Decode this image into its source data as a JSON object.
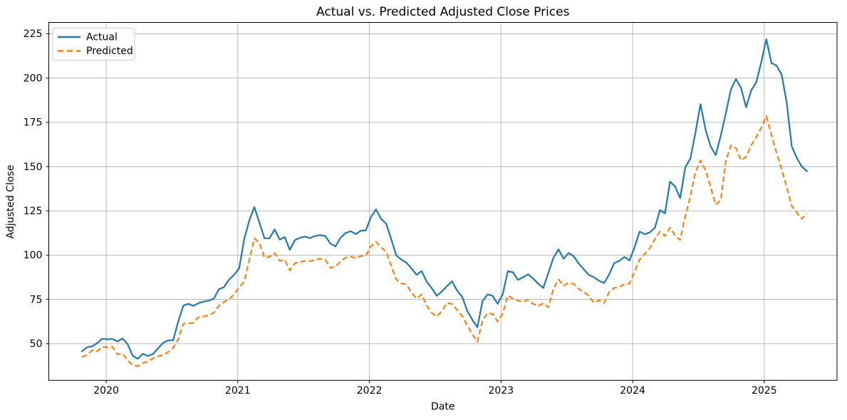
{
  "chart_data": {
    "type": "line",
    "title": "Actual vs. Predicted Adjusted Close Prices",
    "xlabel": "Date",
    "ylabel": "Adjusted Close",
    "xlim": [
      2019.564,
      2025.553
    ],
    "ylim": [
      29.3,
      231.4
    ],
    "x_ticks": [
      2020,
      2021,
      2022,
      2023,
      2024,
      2025
    ],
    "y_ticks": [
      50,
      75,
      100,
      125,
      150,
      175,
      200,
      225
    ],
    "grid": true,
    "grid_color": "#b0b0b0",
    "legend_position": "upper left",
    "x_start_decimal_year": 2019.816,
    "x_step_decimal_year": 0.03852,
    "series": [
      {
        "name": "Actual",
        "color": "#1f77b4",
        "line_style": "solid",
        "values": [
          45.7,
          48.0,
          48.5,
          50.3,
          52.8,
          52.5,
          52.7,
          51.3,
          52.9,
          49.8,
          43.2,
          41.5,
          44.3,
          43.1,
          44.2,
          47.3,
          50.5,
          51.8,
          52.0,
          62.7,
          71.5,
          72.5,
          71.4,
          72.9,
          73.8,
          74.3,
          75.4,
          80.7,
          81.9,
          86.1,
          88.9,
          92.5,
          109.0,
          119.5,
          127.2,
          118.5,
          109.5,
          109.5,
          114.5,
          108.8,
          110.2,
          103.0,
          108.5,
          109.8,
          110.5,
          109.6,
          110.9,
          111.3,
          110.8,
          106.5,
          105.0,
          109.8,
          112.5,
          113.5,
          111.9,
          113.8,
          114.0,
          121.5,
          125.8,
          120.5,
          117.8,
          109.0,
          99.8,
          97.5,
          95.8,
          92.5,
          88.9,
          91.0,
          85.0,
          81.4,
          77.0,
          79.5,
          82.5,
          85.2,
          80.0,
          76.5,
          68.5,
          63.5,
          59.3,
          74.0,
          77.8,
          77.0,
          72.5,
          78.0,
          91.0,
          90.3,
          86.0,
          87.5,
          89.2,
          86.8,
          83.8,
          81.5,
          90.0,
          98.5,
          103.2,
          98.0,
          101.2,
          99.4,
          95.2,
          92.0,
          88.8,
          87.5,
          85.5,
          84.3,
          89.2,
          95.5,
          96.8,
          99.0,
          97.0,
          104.5,
          113.3,
          111.8,
          112.8,
          115.4,
          125.4,
          123.6,
          141.5,
          138.8,
          132.2,
          149.6,
          154.5,
          169.0,
          185.3,
          171.0,
          161.5,
          156.5,
          167.5,
          180.0,
          193.5,
          199.5,
          194.5,
          183.5,
          193.0,
          197.5,
          209.0,
          221.9,
          208.5,
          207.0,
          202.0,
          186.4,
          161.5,
          154.9,
          150.0,
          147.4
        ]
      },
      {
        "name": "Predicted",
        "color": "#ff7f0e",
        "line_style": "dashed",
        "values": [
          42.4,
          43.7,
          46.3,
          45.7,
          48.3,
          47.9,
          48.2,
          44.0,
          44.5,
          40.5,
          38.0,
          37.2,
          39.1,
          40.0,
          41.7,
          43.0,
          43.5,
          45.3,
          47.7,
          52.5,
          61.3,
          61.5,
          61.8,
          65.0,
          65.4,
          66.0,
          67.5,
          71.4,
          73.5,
          75.1,
          77.8,
          81.8,
          85.0,
          97.0,
          109.5,
          107.0,
          98.5,
          99.0,
          101.2,
          96.8,
          97.4,
          91.5,
          95.5,
          96.2,
          96.6,
          96.6,
          97.4,
          98.0,
          97.3,
          92.8,
          93.5,
          96.5,
          98.6,
          99.2,
          98.3,
          99.5,
          99.7,
          105.0,
          107.5,
          104.6,
          101.8,
          94.0,
          86.3,
          84.0,
          83.5,
          79.0,
          75.5,
          77.8,
          71.5,
          67.4,
          65.3,
          68.5,
          73.0,
          72.5,
          69.0,
          65.8,
          60.5,
          55.3,
          51.0,
          63.0,
          67.3,
          66.8,
          62.5,
          67.0,
          77.2,
          75.5,
          74.3,
          73.5,
          74.8,
          72.5,
          71.3,
          72.8,
          70.5,
          81.0,
          86.3,
          82.7,
          84.4,
          83.8,
          80.9,
          79.3,
          77.0,
          73.0,
          74.5,
          73.0,
          79.2,
          81.5,
          82.0,
          83.7,
          84.0,
          90.5,
          97.5,
          100.6,
          103.8,
          109.0,
          113.3,
          110.8,
          115.5,
          111.0,
          108.6,
          121.9,
          133.2,
          146.6,
          153.5,
          148.0,
          138.6,
          128.5,
          131.0,
          153.0,
          162.0,
          160.5,
          153.5,
          155.6,
          162.0,
          166.5,
          172.0,
          178.5,
          168.0,
          158.0,
          148.5,
          138.5,
          127.8,
          124.0,
          120.5,
          123.5
        ]
      }
    ]
  }
}
